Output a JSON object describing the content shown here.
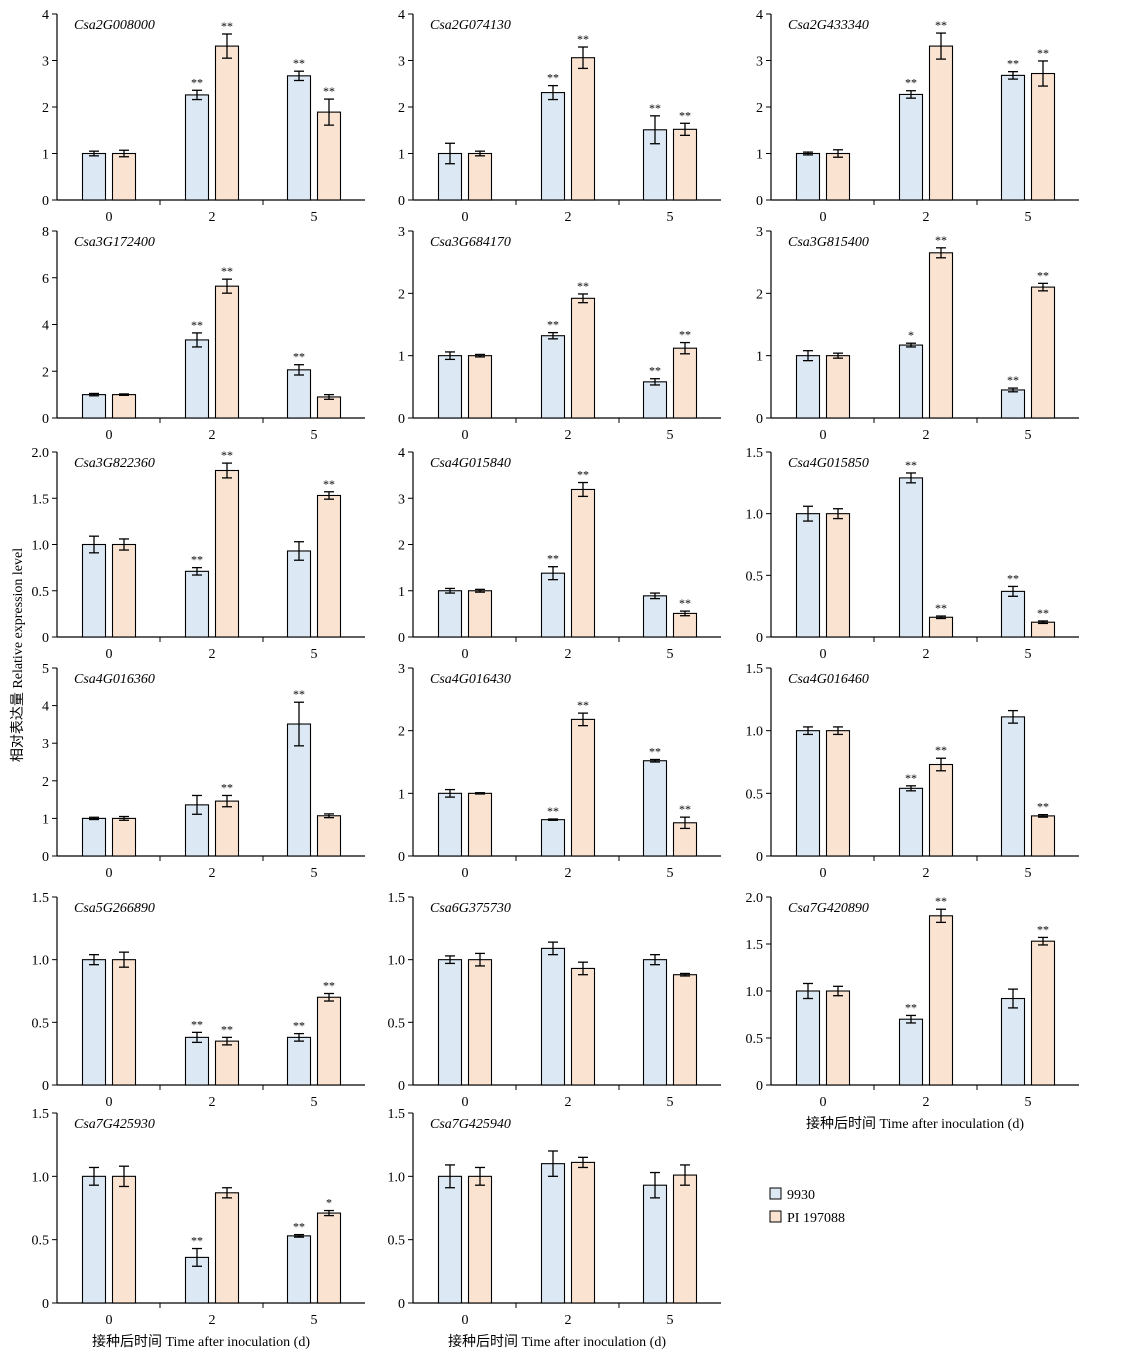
{
  "ylabel": "相对表达量 Relative expression level",
  "legend": {
    "items": [
      {
        "label": "9930",
        "color": "#dce9f5"
      },
      {
        "label": "PI 197088",
        "color": "#fbe3d2"
      }
    ]
  },
  "chart_data": [
    {
      "type": "bar",
      "title": "Csa2G008000",
      "categories": [
        "0",
        "2",
        "5"
      ],
      "ylim": [
        0,
        4
      ],
      "ytick_labels": [
        "0",
        "1",
        "2",
        "3",
        "4"
      ],
      "xlabel": "",
      "series": [
        {
          "values": [
            1.0,
            2.26,
            2.67
          ],
          "errors": [
            0.05,
            0.1,
            0.1
          ],
          "sig": [
            "",
            "**",
            "**"
          ]
        },
        {
          "values": [
            1.0,
            3.31,
            1.89
          ],
          "errors": [
            0.07,
            0.26,
            0.28
          ],
          "sig": [
            "",
            "**",
            "**"
          ]
        }
      ]
    },
    {
      "type": "bar",
      "title": "Csa2G074130",
      "categories": [
        "0",
        "2",
        "5"
      ],
      "ylim": [
        0,
        4
      ],
      "ytick_labels": [
        "0",
        "1",
        "2",
        "3",
        "4"
      ],
      "xlabel": "",
      "series": [
        {
          "values": [
            1.0,
            2.31,
            1.51
          ],
          "errors": [
            0.22,
            0.15,
            0.3
          ],
          "sig": [
            "",
            "**",
            "**"
          ]
        },
        {
          "values": [
            1.0,
            3.06,
            1.52
          ],
          "errors": [
            0.05,
            0.23,
            0.13
          ],
          "sig": [
            "",
            "**",
            "**"
          ]
        }
      ]
    },
    {
      "type": "bar",
      "title": "Csa2G433340",
      "categories": [
        "0",
        "2",
        "5"
      ],
      "ylim": [
        0,
        4
      ],
      "ytick_labels": [
        "0",
        "1",
        "2",
        "3",
        "4"
      ],
      "xlabel": "",
      "series": [
        {
          "values": [
            1.0,
            2.27,
            2.68
          ],
          "errors": [
            0.03,
            0.08,
            0.08
          ],
          "sig": [
            "",
            "**",
            "**"
          ]
        },
        {
          "values": [
            1.0,
            3.31,
            2.72
          ],
          "errors": [
            0.08,
            0.28,
            0.27
          ],
          "sig": [
            "",
            "**",
            "**"
          ]
        }
      ]
    },
    {
      "type": "bar",
      "title": "Csa3G172400",
      "categories": [
        "0",
        "2",
        "5"
      ],
      "ylim": [
        0,
        8
      ],
      "ytick_labels": [
        "0",
        "2",
        "4",
        "6",
        "8"
      ],
      "xlabel": "",
      "series": [
        {
          "values": [
            1.0,
            3.34,
            2.06
          ],
          "errors": [
            0.05,
            0.3,
            0.22
          ],
          "sig": [
            "",
            "**",
            "**"
          ]
        },
        {
          "values": [
            1.0,
            5.64,
            0.9
          ],
          "errors": [
            0.03,
            0.3,
            0.1
          ],
          "sig": [
            "",
            "**",
            ""
          ]
        }
      ]
    },
    {
      "type": "bar",
      "title": "Csa3G684170",
      "categories": [
        "0",
        "2",
        "5"
      ],
      "ylim": [
        0,
        3
      ],
      "ytick_labels": [
        "0",
        "1",
        "2",
        "3"
      ],
      "xlabel": "",
      "series": [
        {
          "values": [
            1.0,
            1.32,
            0.58
          ],
          "errors": [
            0.06,
            0.05,
            0.05
          ],
          "sig": [
            "",
            "**",
            "**"
          ]
        },
        {
          "values": [
            1.0,
            1.92,
            1.12
          ],
          "errors": [
            0.02,
            0.07,
            0.09
          ],
          "sig": [
            "",
            "**",
            "**"
          ]
        }
      ]
    },
    {
      "type": "bar",
      "title": "Csa3G815400",
      "categories": [
        "0",
        "2",
        "5"
      ],
      "ylim": [
        0,
        3
      ],
      "ytick_labels": [
        "0",
        "1",
        "2",
        "3"
      ],
      "xlabel": "",
      "series": [
        {
          "values": [
            1.0,
            1.17,
            0.45
          ],
          "errors": [
            0.08,
            0.03,
            0.03
          ],
          "sig": [
            "",
            "*",
            "**"
          ]
        },
        {
          "values": [
            1.0,
            2.65,
            2.1
          ],
          "errors": [
            0.04,
            0.08,
            0.06
          ],
          "sig": [
            "",
            "**",
            "**"
          ]
        }
      ]
    },
    {
      "type": "bar",
      "title": "Csa3G822360",
      "categories": [
        "0",
        "2",
        "5"
      ],
      "ylim": [
        0,
        2
      ],
      "ytick_labels": [
        "0",
        "0.5",
        "1.0",
        "1.5",
        "2.0"
      ],
      "xlabel": "",
      "series": [
        {
          "values": [
            1.0,
            0.71,
            0.93
          ],
          "errors": [
            0.09,
            0.04,
            0.1
          ],
          "sig": [
            "",
            "**",
            ""
          ]
        },
        {
          "values": [
            1.0,
            1.8,
            1.53
          ],
          "errors": [
            0.06,
            0.08,
            0.04
          ],
          "sig": [
            "",
            "**",
            "**"
          ]
        }
      ]
    },
    {
      "type": "bar",
      "title": "Csa4G015840",
      "categories": [
        "0",
        "2",
        "5"
      ],
      "ylim": [
        0,
        4
      ],
      "ytick_labels": [
        "0",
        "1",
        "2",
        "3",
        "4"
      ],
      "xlabel": "",
      "series": [
        {
          "values": [
            1.0,
            1.38,
            0.89
          ],
          "errors": [
            0.05,
            0.14,
            0.06
          ],
          "sig": [
            "",
            "**",
            ""
          ]
        },
        {
          "values": [
            1.0,
            3.19,
            0.51
          ],
          "errors": [
            0.03,
            0.15,
            0.05
          ],
          "sig": [
            "",
            "**",
            "**"
          ]
        }
      ]
    },
    {
      "type": "bar",
      "title": "Csa4G015850",
      "categories": [
        "0",
        "2",
        "5"
      ],
      "ylim": [
        0,
        1.5
      ],
      "ytick_labels": [
        "0",
        "0.5",
        "1.0",
        "1.5"
      ],
      "xlabel": "",
      "series": [
        {
          "values": [
            1.0,
            1.29,
            0.37
          ],
          "errors": [
            0.06,
            0.04,
            0.04
          ],
          "sig": [
            "",
            "**",
            "**"
          ]
        },
        {
          "values": [
            1.0,
            0.16,
            0.12
          ],
          "errors": [
            0.04,
            0.01,
            0.01
          ],
          "sig": [
            "",
            "**",
            "**"
          ]
        }
      ]
    },
    {
      "type": "bar",
      "title": "Csa4G016360",
      "categories": [
        "0",
        "2",
        "5"
      ],
      "ylim": [
        0,
        5
      ],
      "ytick_labels": [
        "0",
        "1",
        "2",
        "3",
        "4",
        "5"
      ],
      "xlabel": "",
      "series": [
        {
          "values": [
            1.0,
            1.36,
            3.51
          ],
          "errors": [
            0.03,
            0.25,
            0.58
          ],
          "sig": [
            "",
            "",
            "**"
          ]
        },
        {
          "values": [
            1.0,
            1.46,
            1.07
          ],
          "errors": [
            0.05,
            0.15,
            0.05
          ],
          "sig": [
            "",
            "**",
            ""
          ]
        }
      ]
    },
    {
      "type": "bar",
      "title": "Csa4G016430",
      "categories": [
        "0",
        "2",
        "5"
      ],
      "ylim": [
        0,
        3
      ],
      "ytick_labels": [
        "0",
        "1",
        "2",
        "3"
      ],
      "xlabel": "",
      "series": [
        {
          "values": [
            1.0,
            0.58,
            1.52
          ],
          "errors": [
            0.06,
            0.01,
            0.02
          ],
          "sig": [
            "",
            "**",
            "**"
          ]
        },
        {
          "values": [
            1.0,
            2.18,
            0.53
          ],
          "errors": [
            0.01,
            0.1,
            0.09
          ],
          "sig": [
            "",
            "**",
            "**"
          ]
        }
      ]
    },
    {
      "type": "bar",
      "title": "Csa4G016460",
      "categories": [
        "0",
        "2",
        "5"
      ],
      "ylim": [
        0,
        1.5
      ],
      "ytick_labels": [
        "0",
        "0.5",
        "1.0",
        "1.5"
      ],
      "xlabel": "",
      "series": [
        {
          "values": [
            1.0,
            0.54,
            1.11
          ],
          "errors": [
            0.03,
            0.02,
            0.05
          ],
          "sig": [
            "",
            "**",
            ""
          ]
        },
        {
          "values": [
            1.0,
            0.73,
            0.32
          ],
          "errors": [
            0.03,
            0.05,
            0.01
          ],
          "sig": [
            "",
            "**",
            "**"
          ]
        }
      ]
    },
    {
      "type": "bar",
      "title": "Csa5G266890",
      "categories": [
        "0",
        "2",
        "5"
      ],
      "ylim": [
        0,
        1.5
      ],
      "ytick_labels": [
        "0",
        "0.5",
        "1.0",
        "1.5"
      ],
      "xlabel": "",
      "series": [
        {
          "values": [
            1.0,
            0.38,
            0.38
          ],
          "errors": [
            0.04,
            0.04,
            0.03
          ],
          "sig": [
            "",
            "**",
            "**"
          ]
        },
        {
          "values": [
            1.0,
            0.35,
            0.7
          ],
          "errors": [
            0.06,
            0.03,
            0.03
          ],
          "sig": [
            "",
            "**",
            "**"
          ]
        }
      ]
    },
    {
      "type": "bar",
      "title": "Csa6G375730",
      "categories": [
        "0",
        "2",
        "5"
      ],
      "ylim": [
        0,
        1.5
      ],
      "ytick_labels": [
        "0",
        "0.5",
        "1.0",
        "1.5"
      ],
      "xlabel": "",
      "series": [
        {
          "values": [
            1.0,
            1.09,
            1.0
          ],
          "errors": [
            0.03,
            0.05,
            0.04
          ],
          "sig": [
            "",
            "",
            ""
          ]
        },
        {
          "values": [
            1.0,
            0.93,
            0.88
          ],
          "errors": [
            0.05,
            0.05,
            0.01
          ],
          "sig": [
            "",
            "",
            ""
          ]
        }
      ]
    },
    {
      "type": "bar",
      "title": "Csa7G420890",
      "categories": [
        "0",
        "2",
        "5"
      ],
      "ylim": [
        0,
        2
      ],
      "ytick_labels": [
        "0",
        "0.5",
        "1.0",
        "1.5",
        "2.0"
      ],
      "xlabel": "接种后时间 Time after inoculation (d)",
      "series": [
        {
          "values": [
            1.0,
            0.7,
            0.92
          ],
          "errors": [
            0.08,
            0.04,
            0.1
          ],
          "sig": [
            "",
            "**",
            ""
          ]
        },
        {
          "values": [
            1.0,
            1.8,
            1.53
          ],
          "errors": [
            0.05,
            0.07,
            0.04
          ],
          "sig": [
            "",
            "**",
            "**"
          ]
        }
      ]
    },
    {
      "type": "bar",
      "title": "Csa7G425930",
      "categories": [
        "0",
        "2",
        "5"
      ],
      "ylim": [
        0,
        1.5
      ],
      "ytick_labels": [
        "0",
        "0.5",
        "1.0",
        "1.5"
      ],
      "xlabel": "接种后时间 Time after inoculation (d)",
      "series": [
        {
          "values": [
            1.0,
            0.36,
            0.53
          ],
          "errors": [
            0.07,
            0.07,
            0.01
          ],
          "sig": [
            "",
            "**",
            "**"
          ]
        },
        {
          "values": [
            1.0,
            0.87,
            0.71
          ],
          "errors": [
            0.08,
            0.04,
            0.02
          ],
          "sig": [
            "",
            "",
            "*"
          ]
        }
      ]
    },
    {
      "type": "bar",
      "title": "Csa7G425940",
      "categories": [
        "0",
        "2",
        "5"
      ],
      "ylim": [
        0,
        1.5
      ],
      "ytick_labels": [
        "0",
        "0.5",
        "1.0",
        "1.5"
      ],
      "xlabel": "接种后时间 Time after inoculation (d)",
      "series": [
        {
          "values": [
            1.0,
            1.1,
            0.93
          ],
          "errors": [
            0.09,
            0.1,
            0.1
          ],
          "sig": [
            "",
            "",
            ""
          ]
        },
        {
          "values": [
            1.0,
            1.11,
            1.01
          ],
          "errors": [
            0.07,
            0.04,
            0.08
          ],
          "sig": [
            "",
            "",
            ""
          ]
        }
      ]
    }
  ]
}
